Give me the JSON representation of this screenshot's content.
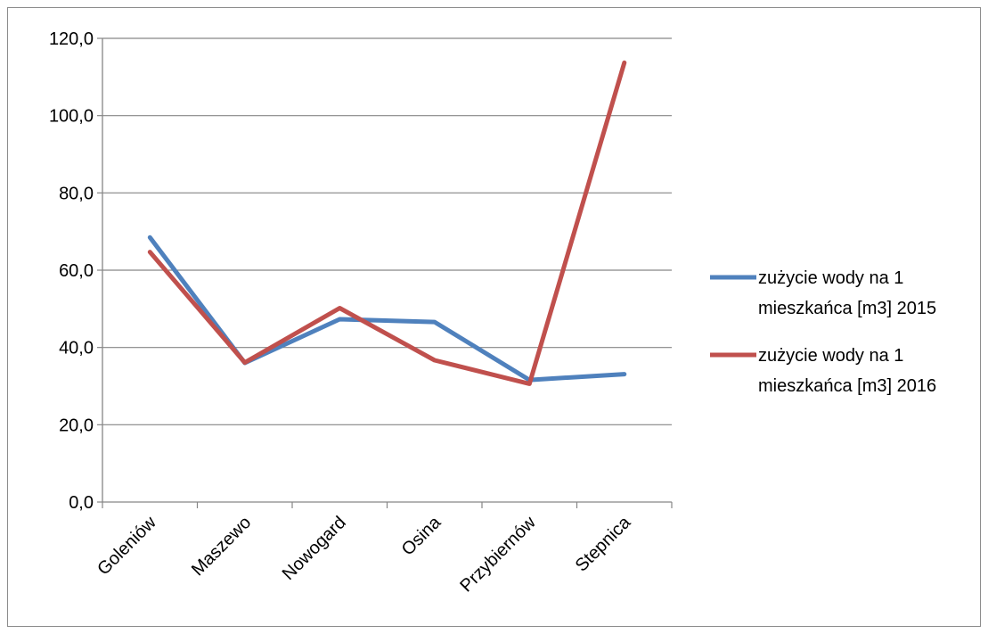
{
  "chart_data": {
    "type": "line",
    "categories": [
      "Goleniów",
      "Maszewo",
      "Nowogard",
      "Osina",
      "Przybiernów",
      "Stepnica"
    ],
    "series": [
      {
        "name": "zużycie wody na 1 mieszkańca [m3] 2015",
        "values": [
          68.5,
          36.0,
          47.3,
          46.6,
          31.6,
          33.1
        ],
        "color": "#4f81bd"
      },
      {
        "name": "zużycie wody na 1 mieszkańca [m3] 2016",
        "values": [
          64.7,
          36.1,
          50.2,
          36.7,
          30.6,
          113.7
        ],
        "color": "#c0504d"
      }
    ],
    "legend_lines": [
      [
        "zużycie wody na 1",
        "mieszkańca [m3] 2015"
      ],
      [
        "zużycie wody na 1",
        "mieszkańca [m3] 2016"
      ]
    ],
    "yticks": [
      "0,0",
      "20,0",
      "40,0",
      "60,0",
      "80,0",
      "100,0",
      "120,0"
    ],
    "ylim": [
      0,
      120
    ],
    "grid": true,
    "legend_position": "right"
  }
}
